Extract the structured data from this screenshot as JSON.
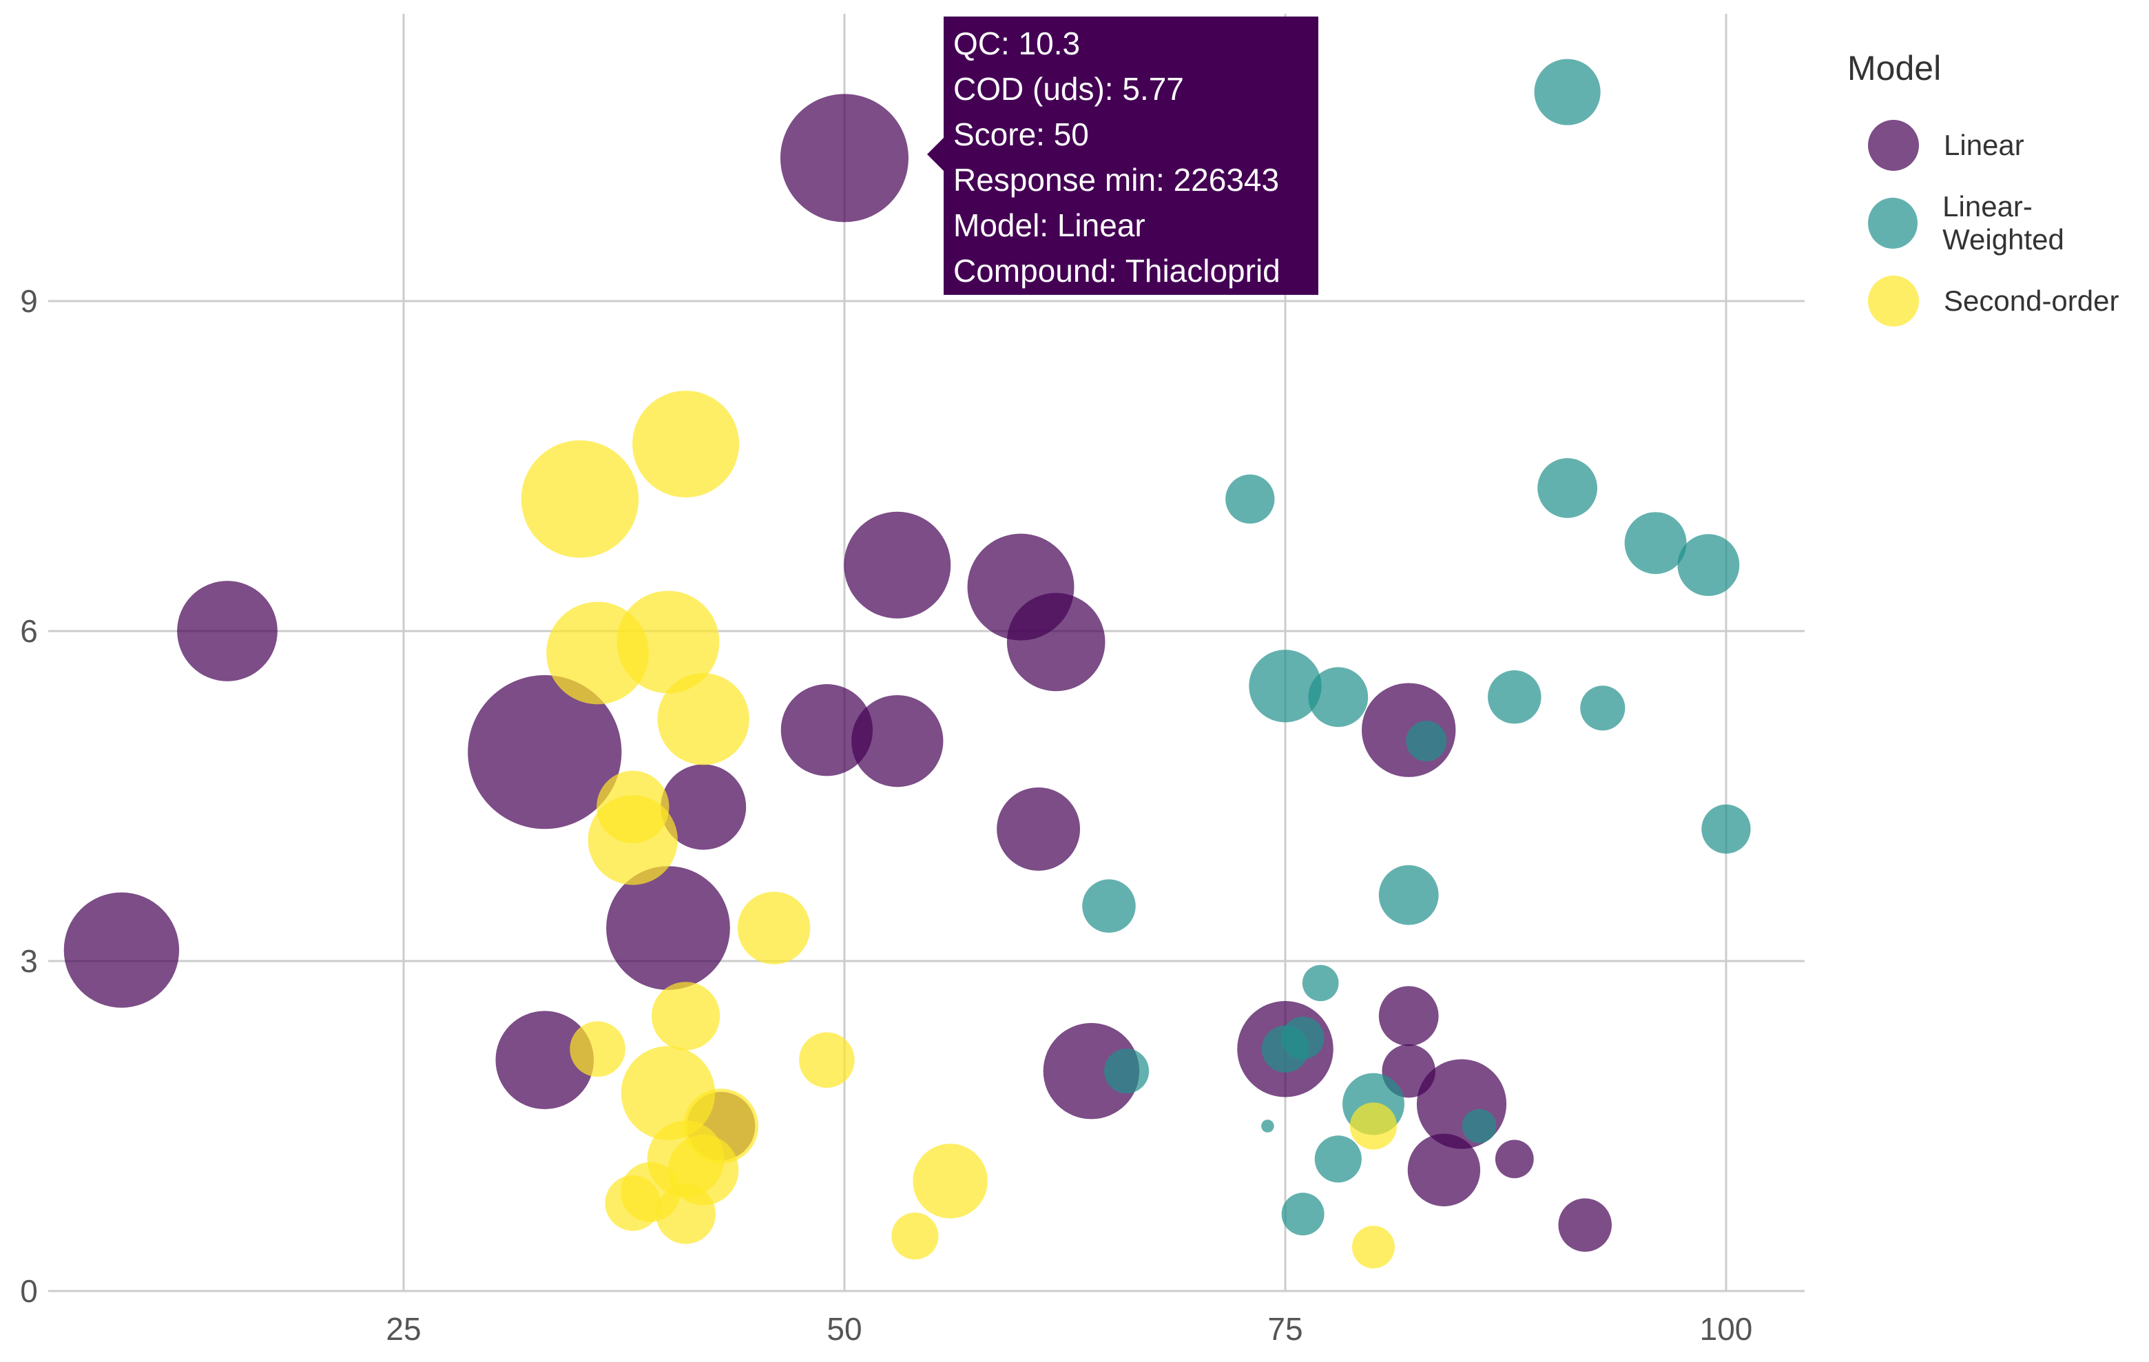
{
  "chart_data": {
    "type": "scatter",
    "subtype": "bubble",
    "title": "",
    "xlabel": "",
    "ylabel": "",
    "xlim": [
      1.5,
      104
    ],
    "ylim": [
      0,
      11.6
    ],
    "x_ticks": [
      25,
      50,
      75,
      100
    ],
    "y_ticks": [
      0,
      3,
      6,
      9
    ],
    "grid": true,
    "size_field": "Response min",
    "series": [
      {
        "name": "Linear",
        "color": "#440154",
        "opacity": 0.7,
        "points": [
          {
            "x": 50,
            "y": 10.3,
            "r": 60
          },
          {
            "x": 15,
            "y": 6.0,
            "r": 47
          },
          {
            "x": 9,
            "y": 3.1,
            "r": 54
          },
          {
            "x": 33,
            "y": 4.9,
            "r": 72
          },
          {
            "x": 42,
            "y": 4.4,
            "r": 40
          },
          {
            "x": 40,
            "y": 3.3,
            "r": 58
          },
          {
            "x": 33,
            "y": 2.1,
            "r": 46
          },
          {
            "x": 43,
            "y": 1.5,
            "r": 32
          },
          {
            "x": 49,
            "y": 5.1,
            "r": 43
          },
          {
            "x": 53,
            "y": 5.0,
            "r": 43
          },
          {
            "x": 53,
            "y": 6.6,
            "r": 50
          },
          {
            "x": 60,
            "y": 6.4,
            "r": 50
          },
          {
            "x": 62,
            "y": 5.9,
            "r": 46
          },
          {
            "x": 61,
            "y": 4.2,
            "r": 39
          },
          {
            "x": 64,
            "y": 2.0,
            "r": 45
          },
          {
            "x": 75,
            "y": 2.2,
            "r": 45
          },
          {
            "x": 82,
            "y": 5.1,
            "r": 44
          },
          {
            "x": 82,
            "y": 2.5,
            "r": 28
          },
          {
            "x": 82,
            "y": 2.0,
            "r": 25
          },
          {
            "x": 85,
            "y": 1.7,
            "r": 42
          },
          {
            "x": 84,
            "y": 1.1,
            "r": 34
          },
          {
            "x": 88,
            "y": 1.2,
            "r": 18
          },
          {
            "x": 92,
            "y": 0.6,
            "r": 25
          }
        ]
      },
      {
        "name": "Linear-Weighted",
        "color": "#21908C",
        "opacity": 0.7,
        "points": [
          {
            "x": 91,
            "y": 10.9,
            "r": 31
          },
          {
            "x": 73,
            "y": 7.2,
            "r": 23
          },
          {
            "x": 91,
            "y": 7.3,
            "r": 28
          },
          {
            "x": 96,
            "y": 6.8,
            "r": 29
          },
          {
            "x": 99,
            "y": 6.6,
            "r": 29
          },
          {
            "x": 75,
            "y": 5.5,
            "r": 34
          },
          {
            "x": 78,
            "y": 5.4,
            "r": 28
          },
          {
            "x": 88,
            "y": 5.4,
            "r": 25
          },
          {
            "x": 93,
            "y": 5.3,
            "r": 21
          },
          {
            "x": 83,
            "y": 5.0,
            "r": 19
          },
          {
            "x": 100,
            "y": 4.2,
            "r": 23
          },
          {
            "x": 65,
            "y": 3.5,
            "r": 25
          },
          {
            "x": 82,
            "y": 3.6,
            "r": 28
          },
          {
            "x": 77,
            "y": 2.8,
            "r": 17
          },
          {
            "x": 76,
            "y": 2.3,
            "r": 20
          },
          {
            "x": 75,
            "y": 2.2,
            "r": 22
          },
          {
            "x": 66,
            "y": 2.0,
            "r": 21
          },
          {
            "x": 80,
            "y": 1.7,
            "r": 29
          },
          {
            "x": 86,
            "y": 1.5,
            "r": 16
          },
          {
            "x": 74,
            "y": 1.5,
            "r": 6
          },
          {
            "x": 78,
            "y": 1.2,
            "r": 22
          },
          {
            "x": 76,
            "y": 0.7,
            "r": 20
          }
        ]
      },
      {
        "name": "Second-order",
        "color": "#FDE725",
        "opacity": 0.7,
        "points": [
          {
            "x": 41,
            "y": 7.7,
            "r": 50
          },
          {
            "x": 35,
            "y": 7.2,
            "r": 55
          },
          {
            "x": 36,
            "y": 5.8,
            "r": 48
          },
          {
            "x": 40,
            "y": 5.9,
            "r": 48
          },
          {
            "x": 42,
            "y": 5.2,
            "r": 43
          },
          {
            "x": 38,
            "y": 4.4,
            "r": 34
          },
          {
            "x": 38,
            "y": 4.1,
            "r": 42
          },
          {
            "x": 46,
            "y": 3.3,
            "r": 34
          },
          {
            "x": 41,
            "y": 2.5,
            "r": 32
          },
          {
            "x": 36,
            "y": 2.2,
            "r": 26
          },
          {
            "x": 49,
            "y": 2.1,
            "r": 26
          },
          {
            "x": 40,
            "y": 1.8,
            "r": 44
          },
          {
            "x": 43,
            "y": 1.5,
            "r": 35
          },
          {
            "x": 41,
            "y": 1.2,
            "r": 36
          },
          {
            "x": 42,
            "y": 1.1,
            "r": 33
          },
          {
            "x": 39,
            "y": 0.9,
            "r": 28
          },
          {
            "x": 38,
            "y": 0.8,
            "r": 26
          },
          {
            "x": 41,
            "y": 0.7,
            "r": 28
          },
          {
            "x": 56,
            "y": 1.0,
            "r": 35
          },
          {
            "x": 54,
            "y": 0.5,
            "r": 22
          },
          {
            "x": 80,
            "y": 1.5,
            "r": 22
          },
          {
            "x": 80,
            "y": 0.4,
            "r": 20
          }
        ]
      }
    ]
  },
  "legend": {
    "title": "Model",
    "items": [
      {
        "label": "Linear",
        "color": "#440154"
      },
      {
        "label": "Linear-Weighted",
        "color": "#21908C"
      },
      {
        "label": "Second-order",
        "color": "#FDE725"
      }
    ]
  },
  "tooltip": {
    "lines": [
      "QC: 10.3",
      "COD (uds): 5.77",
      "Score: 50",
      "Response min: 226343",
      "Model: Linear",
      "Compound: Thiacloprid"
    ]
  }
}
